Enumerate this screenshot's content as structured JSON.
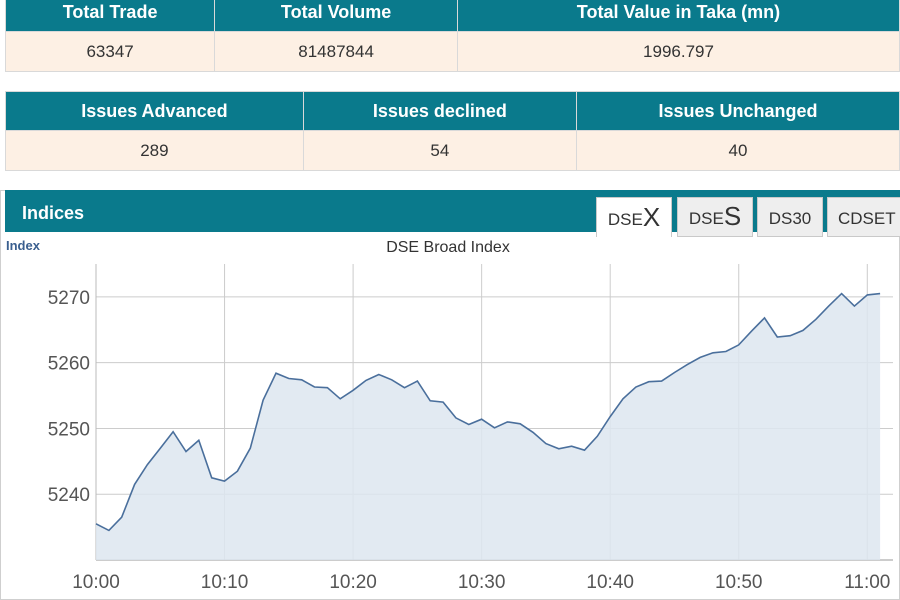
{
  "stats_top": {
    "headers": [
      "Total Trade",
      "Total Volume",
      "Total Value in Taka (mn)"
    ],
    "values": [
      "63347",
      "81487844",
      "1996.797"
    ]
  },
  "stats_issues": {
    "headers": [
      "Issues Advanced",
      "Issues declined",
      "Issues Unchanged"
    ],
    "values": [
      "289",
      "54",
      "40"
    ]
  },
  "indices": {
    "title": "Indices",
    "tabs": [
      {
        "prefix": "DSE",
        "suffix": "X",
        "active": true
      },
      {
        "prefix": "DSE",
        "suffix": "S",
        "active": false
      },
      {
        "prefix": "",
        "suffix": "DS30",
        "active": false
      },
      {
        "prefix": "",
        "suffix": "CDSET",
        "active": false
      }
    ]
  },
  "colors": {
    "header_teal": "#0a7a8c",
    "value_bg": "#fdf0e4",
    "line": "#4a6f9c",
    "fill": "#dde6f0"
  },
  "chart_data": {
    "type": "area",
    "title": "DSE Broad Index",
    "ylabel": "Index",
    "xlabel": "",
    "xlim": [
      "10:00",
      "11:02"
    ],
    "ylim": [
      5230,
      5275
    ],
    "yticks": [
      5240,
      5250,
      5260,
      5270
    ],
    "xticks": [
      "10:00",
      "10:10",
      "10:20",
      "10:30",
      "10:40",
      "10:50",
      "11:00"
    ],
    "grid": true,
    "series": [
      {
        "name": "",
        "x": [
          "10:00",
          "10:01",
          "10:02",
          "10:03",
          "10:04",
          "10:05",
          "10:06",
          "10:07",
          "10:08",
          "10:09",
          "10:10",
          "10:11",
          "10:12",
          "10:13",
          "10:14",
          "10:15",
          "10:16",
          "10:17",
          "10:18",
          "10:19",
          "10:20",
          "10:21",
          "10:22",
          "10:23",
          "10:24",
          "10:25",
          "10:26",
          "10:27",
          "10:28",
          "10:29",
          "10:30",
          "10:31",
          "10:32",
          "10:33",
          "10:34",
          "10:35",
          "10:36",
          "10:37",
          "10:38",
          "10:39",
          "10:40",
          "10:41",
          "10:42",
          "10:43",
          "10:44",
          "10:45",
          "10:46",
          "10:47",
          "10:48",
          "10:49",
          "10:50",
          "10:51",
          "10:52",
          "10:53",
          "10:54",
          "10:55",
          "10:56",
          "10:57",
          "10:58",
          "10:59",
          "11:00",
          "11:01"
        ],
        "values": [
          5235.5,
          5234.5,
          5236.5,
          5241.5,
          5244.5,
          5247,
          5249.5,
          5246.5,
          5248.2,
          5242.5,
          5242,
          5243.5,
          5247,
          5254.3,
          5258.4,
          5257.6,
          5257.4,
          5256.3,
          5256.2,
          5254.5,
          5255.8,
          5257.3,
          5258.2,
          5257.4,
          5256.2,
          5257.2,
          5254.2,
          5254,
          5251.6,
          5250.6,
          5251.4,
          5250.1,
          5251,
          5250.7,
          5249.4,
          5247.7,
          5246.9,
          5247.3,
          5246.7,
          5248.8,
          5251.8,
          5254.5,
          5256.3,
          5257.1,
          5257.2,
          5258.5,
          5259.7,
          5260.8,
          5261.5,
          5261.7,
          5262.7,
          5264.8,
          5266.8,
          5263.9,
          5264.1,
          5264.9,
          5266.6,
          5268.6,
          5270.5,
          5268.6,
          5270.3,
          5270.5
        ]
      }
    ]
  }
}
